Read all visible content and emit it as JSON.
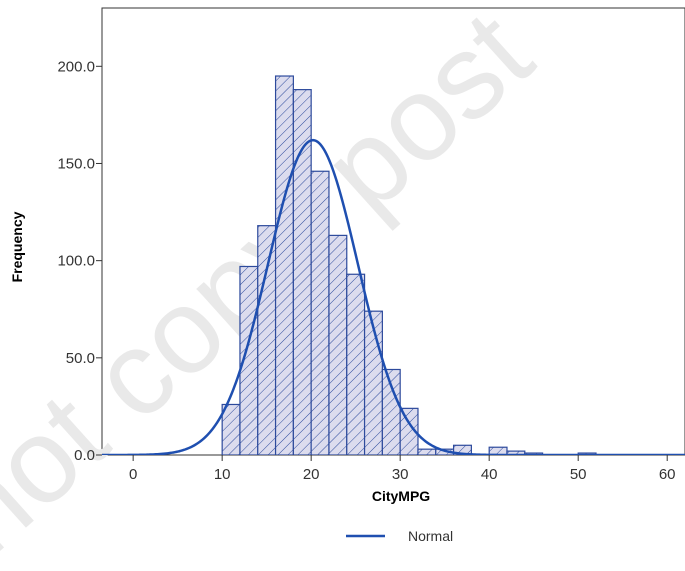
{
  "watermark": "not copy, post",
  "chart_data": {
    "type": "bar",
    "xlabel": "CityMPG",
    "ylabel": "Frequency",
    "xlim": [
      -3.5,
      62
    ],
    "ylim": [
      0,
      230
    ],
    "x_ticks": [
      0,
      10,
      20,
      30,
      40,
      50,
      60
    ],
    "x_tick_labels": [
      "0",
      "10",
      "20",
      "30",
      "40",
      "50",
      "60"
    ],
    "y_ticks": [
      0,
      50,
      100,
      150,
      200
    ],
    "y_tick_labels": [
      "0.0",
      "50.0",
      "100.0",
      "150.0",
      "200.0"
    ],
    "bin_width": 2,
    "bins": [
      {
        "x": 10,
        "count": 26
      },
      {
        "x": 12,
        "count": 97
      },
      {
        "x": 14,
        "count": 118
      },
      {
        "x": 16,
        "count": 195
      },
      {
        "x": 18,
        "count": 188
      },
      {
        "x": 20,
        "count": 146
      },
      {
        "x": 22,
        "count": 113
      },
      {
        "x": 24,
        "count": 93
      },
      {
        "x": 26,
        "count": 74
      },
      {
        "x": 28,
        "count": 44
      },
      {
        "x": 30,
        "count": 24
      },
      {
        "x": 32,
        "count": 3
      },
      {
        "x": 34,
        "count": 3
      },
      {
        "x": 36,
        "count": 5
      },
      {
        "x": 40,
        "count": 4
      },
      {
        "x": 42,
        "count": 2
      },
      {
        "x": 44,
        "count": 1
      },
      {
        "x": 50,
        "count": 1
      }
    ],
    "series": [
      {
        "name": "Normal",
        "type": "line",
        "mean": 20.2,
        "sd": 5.05,
        "peak": 162,
        "color": "#1f4fb0"
      }
    ],
    "bar_fill": "#dcdcee",
    "bar_stroke": "#2d4a9c",
    "legend_position": "bottom-center",
    "grid": false
  }
}
